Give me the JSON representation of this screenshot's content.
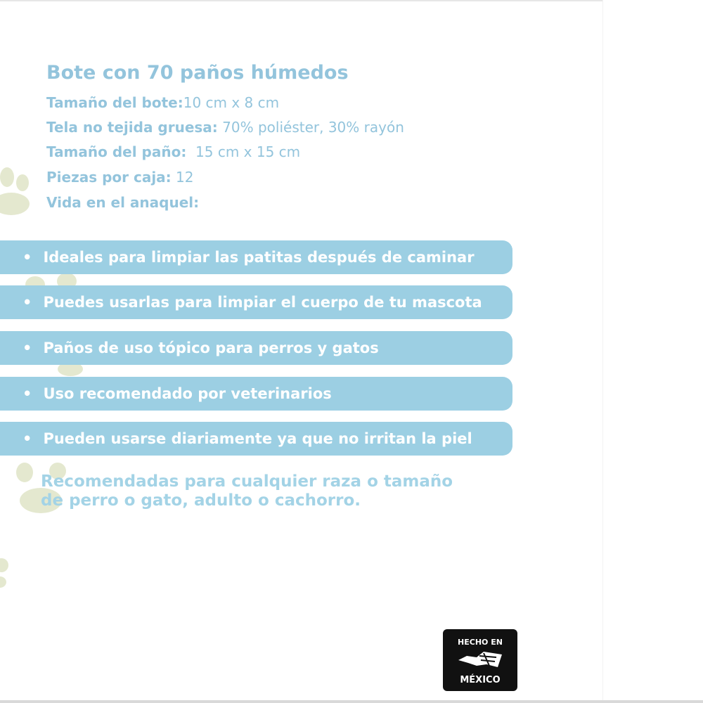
{
  "title": "Bote con 70 paños húmedos",
  "specs": [
    {
      "label": "Tamaño del bote:",
      "value": "10 cm x 8 cm"
    },
    {
      "label": "Tela no tejida gruesa:",
      "value": " 70% poliéster, 30% rayón"
    },
    {
      "label": "Tamaño del paño:",
      "value": "  15 cm x 15 cm"
    },
    {
      "label": "Piezas por caja:",
      "value": " 12"
    },
    {
      "label": "Vida en el anaquel:",
      "value": ""
    }
  ],
  "features": [
    "Ideales para limpiar las patitas después de caminar",
    "Puedes usarlas para limpiar el cuerpo de tu mascota",
    "Paños de uso tópico para perros y gatos",
    "Uso recomendado por veterinarios",
    "Pueden usarse diariamente ya que no irritan la piel"
  ],
  "bullet": "•",
  "recommendation": {
    "line1": "Recomendadas para cualquier raza o tamaño",
    "line2": "de perro o gato, adulto o cachorro."
  },
  "badge": {
    "top": "HECHO EN",
    "bottom": "MÉXICO"
  },
  "colors": {
    "text": "#93c4dc",
    "pill": "#9ccfe3",
    "paw": "#dfe3c8"
  }
}
